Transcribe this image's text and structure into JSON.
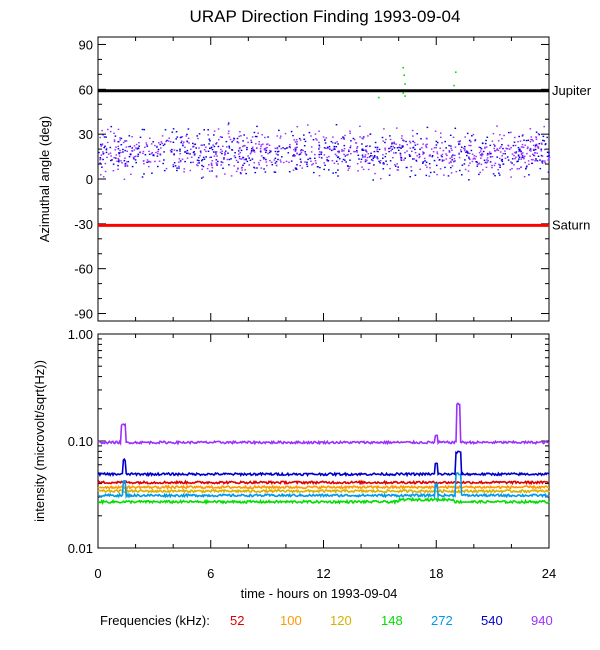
{
  "chart_data": [
    {
      "type": "scatter",
      "title": "URAP Direction Finding  1993-09-04",
      "ylabel": "Azimuthal angle (deg)",
      "xlim": [
        0,
        24
      ],
      "ylim": [
        -95,
        95
      ],
      "yticks": [
        -90,
        -60,
        -30,
        0,
        30,
        60,
        90
      ],
      "ytick_labels": [
        "-90",
        "-60",
        "-30",
        "0",
        "30",
        "60",
        "90"
      ],
      "reference_lines": [
        {
          "label": "Jupiter",
          "y": 59,
          "color": "#000000"
        },
        {
          "label": "Saturn",
          "y": -31,
          "color": "#ff0000"
        }
      ],
      "scatter_band": {
        "center_deg": 18,
        "spread_deg": 9,
        "colors": [
          "#9b30ff",
          "#0000e0"
        ]
      },
      "green_points": [
        {
          "x": 14.9,
          "y": 55
        },
        {
          "x": 16.2,
          "y": 75
        },
        {
          "x": 16.25,
          "y": 70
        },
        {
          "x": 16.3,
          "y": 64
        },
        {
          "x": 16.2,
          "y": 58
        },
        {
          "x": 16.3,
          "y": 56
        },
        {
          "x": 19.0,
          "y": 72
        },
        {
          "x": 18.9,
          "y": 63
        }
      ]
    },
    {
      "type": "line",
      "ylabel": "intensity (microvolt/sqrt(Hz))",
      "xlabel": "time - hours on 1993-09-04",
      "xlim": [
        0,
        24
      ],
      "xticks": [
        0,
        6,
        12,
        18,
        24
      ],
      "xtick_labels": [
        "0",
        "6",
        "12",
        "18",
        "24"
      ],
      "yscale": "log",
      "ylim": [
        0.01,
        1.0
      ],
      "ytick_labels": [
        "0.01",
        "0.10",
        "1.00"
      ],
      "legend_label": "Frequencies (kHz):",
      "series": [
        {
          "name": "52",
          "color": "#dd0000",
          "baseline": 0.041
        },
        {
          "name": "100",
          "color": "#ff9900",
          "baseline": 0.037
        },
        {
          "name": "120",
          "color": "#d8b000",
          "baseline": 0.034
        },
        {
          "name": "148",
          "color": "#00dd00",
          "baseline": 0.027
        },
        {
          "name": "272",
          "color": "#0099ee",
          "baseline": 0.031
        },
        {
          "name": "540",
          "color": "#0000cc",
          "baseline": 0.049
        },
        {
          "name": "940",
          "color": "#9b30ff",
          "baseline": 0.097
        }
      ]
    }
  ]
}
